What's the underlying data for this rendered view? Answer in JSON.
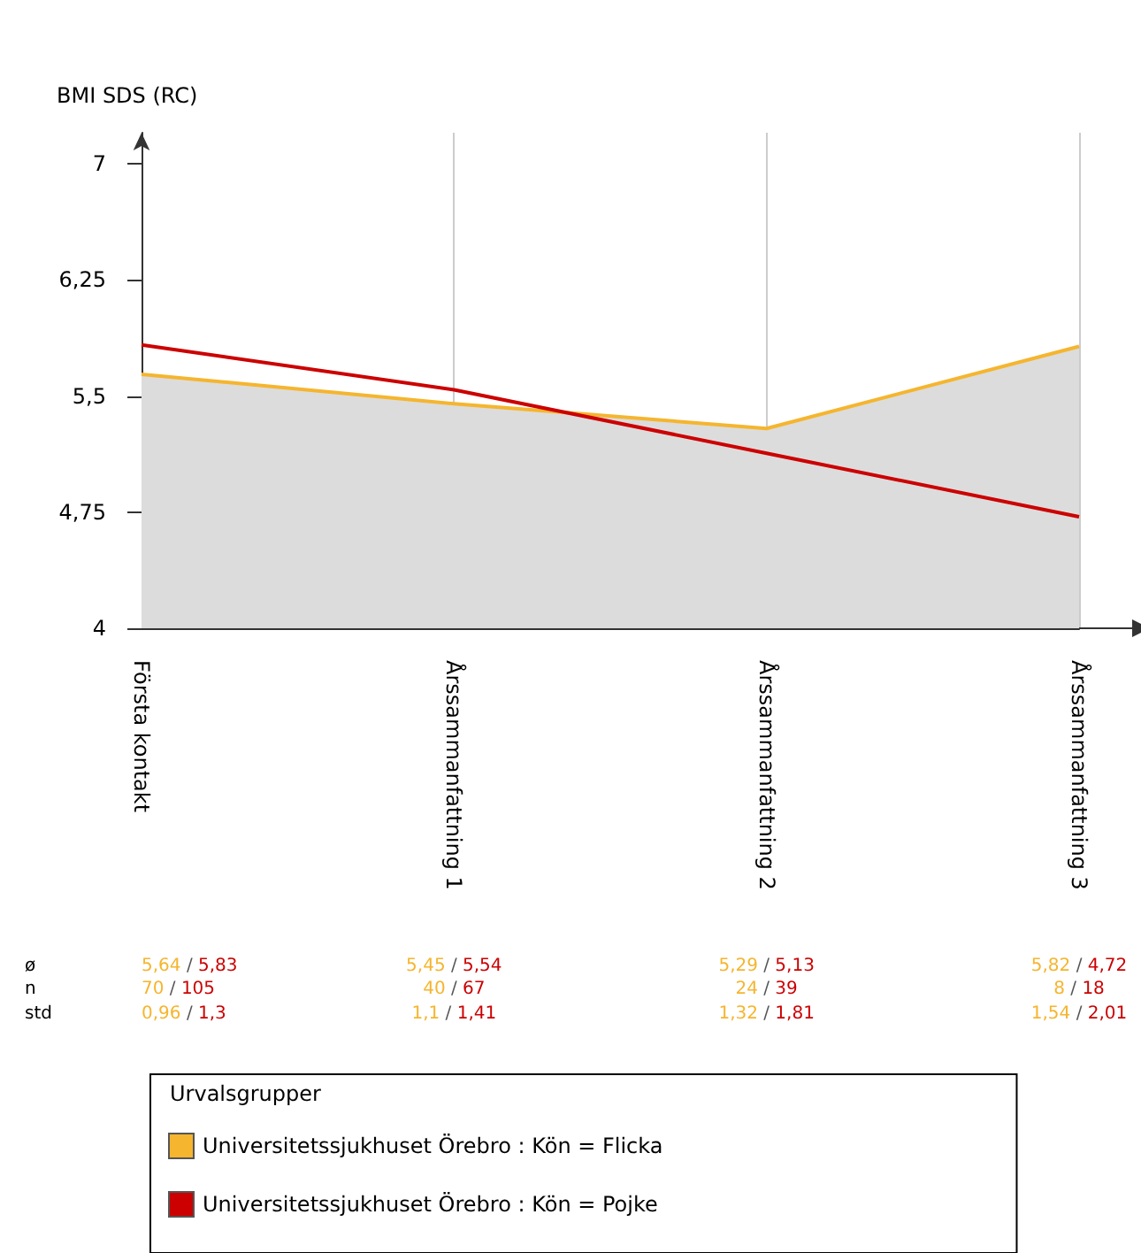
{
  "chart_data": {
    "type": "line",
    "ylabel": "BMI SDS (RC)",
    "categories": [
      "Första kontakt",
      "Årssammanfattning 1",
      "Årssammanfattning 2",
      "Årssammanfattning 3"
    ],
    "series": [
      {
        "name": "Universitetssjukhuset Örebro : Kön = Flicka",
        "type": "area",
        "color": "#f5b52e",
        "values": [
          5.64,
          5.45,
          5.29,
          5.82
        ]
      },
      {
        "name": "Universitetssjukhuset Örebro : Kön = Pojke",
        "color": "#cc0000",
        "values": [
          5.83,
          5.54,
          5.13,
          4.72
        ]
      }
    ],
    "ylim": [
      4,
      7.2
    ],
    "yticks": [
      4,
      {
        "value": 4.75,
        "label": "4,75"
      },
      {
        "value": 5.5,
        "label": "5,5"
      },
      {
        "value": 6.25,
        "label": "6,25"
      },
      7
    ],
    "grid": "x",
    "legend": "bottom",
    "legend_title": "Urvalsgrupper",
    "marker": "none",
    "line_style": "solid",
    "annotations": [
      "ø",
      "n",
      "std",
      "5,64 / 5,83",
      "70 / 105",
      "0,96 / 1,3",
      "5,45 / 5,54",
      "40 / 67",
      "1,1 / 1,41",
      "5,29 / 5,13",
      "24 / 39",
      "1,32 / 1,81",
      "5,82 / 4,72",
      "8 / 18",
      "1,54 / 2,01"
    ]
  }
}
